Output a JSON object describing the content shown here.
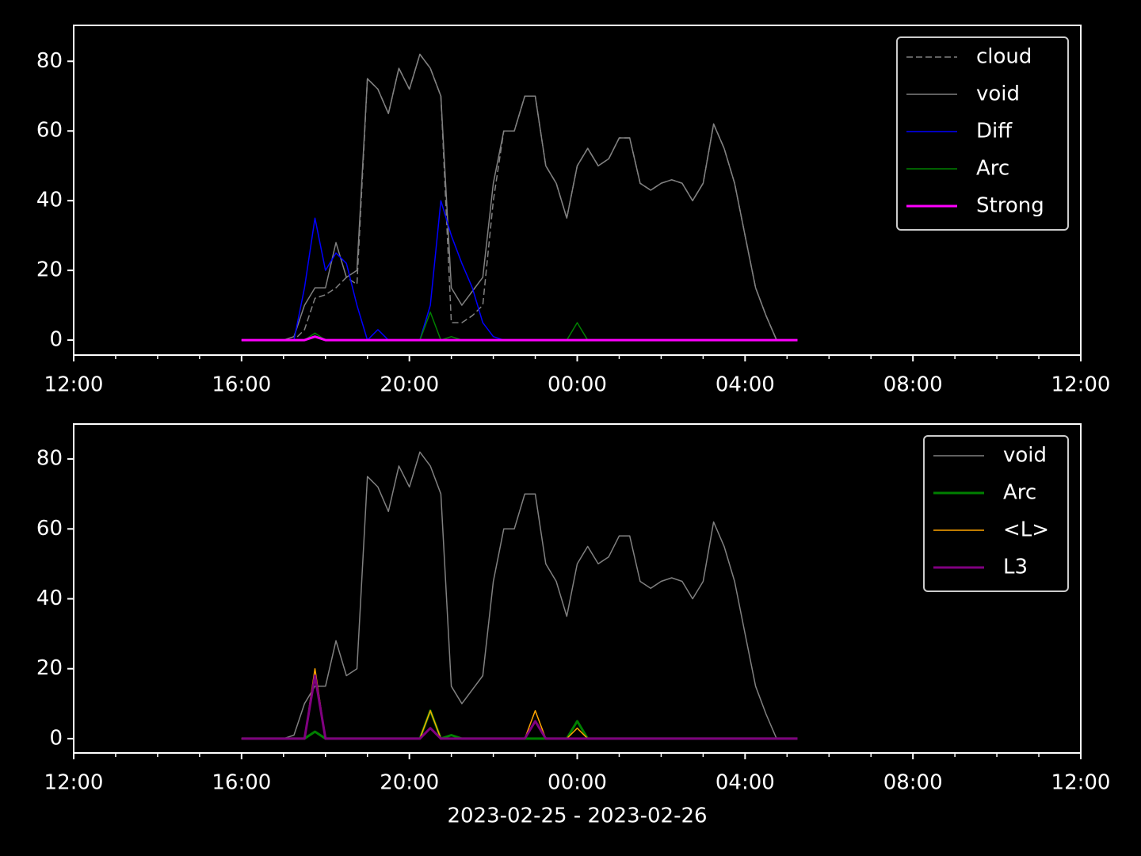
{
  "chart_data": [
    {
      "type": "line",
      "xlim": [
        0,
        24
      ],
      "ylim": [
        -4.3,
        90.3
      ],
      "xticks": [
        {
          "value": 0,
          "label": "12:00"
        },
        {
          "value": 4,
          "label": "16:00"
        },
        {
          "value": 8,
          "label": "20:00"
        },
        {
          "value": 12,
          "label": "00:00"
        },
        {
          "value": 16,
          "label": "04:00"
        },
        {
          "value": 20,
          "label": "08:00"
        },
        {
          "value": 24,
          "label": "12:00"
        }
      ],
      "xminorticks": [
        1,
        2,
        3,
        5,
        6,
        7,
        9,
        10,
        11,
        13,
        14,
        15,
        17,
        18,
        19,
        21,
        22,
        23
      ],
      "yticks": [
        0,
        20,
        40,
        60,
        80
      ],
      "legend": "upper right",
      "x": [
        4,
        4.25,
        4.5,
        4.75,
        5,
        5.25,
        5.5,
        5.75,
        6,
        6.25,
        6.5,
        6.75,
        7,
        7.25,
        7.5,
        7.75,
        8,
        8.25,
        8.5,
        8.75,
        9,
        9.25,
        9.5,
        9.75,
        10,
        10.25,
        10.5,
        10.75,
        11,
        11.25,
        11.5,
        11.75,
        12,
        12.25,
        12.5,
        12.75,
        13,
        13.25,
        13.5,
        13.75,
        14,
        14.25,
        14.5,
        14.75,
        15,
        15.25,
        15.5,
        15.75,
        16,
        16.25,
        16.5,
        16.75,
        17,
        17.25
      ],
      "series": [
        {
          "name": "cloud",
          "color": "#808080",
          "linewidth": 1.5,
          "linestyle": "dashed",
          "values": [
            0,
            0,
            0,
            0,
            0,
            0,
            3,
            12,
            13,
            15,
            18,
            16,
            75,
            72,
            65,
            78,
            72,
            82,
            78,
            70,
            5,
            5,
            7,
            10,
            40,
            60,
            60,
            70,
            70,
            50,
            45,
            35,
            50,
            55,
            50,
            52,
            58,
            58,
            45,
            43,
            45,
            46,
            45,
            40,
            45,
            62,
            55,
            45,
            30,
            15,
            7,
            0,
            0,
            0
          ]
        },
        {
          "name": "void",
          "color": "#808080",
          "linewidth": 1.5,
          "linestyle": "solid",
          "values": [
            0,
            0,
            0,
            0,
            0,
            1,
            10,
            15,
            15,
            28,
            18,
            20,
            75,
            72,
            65,
            78,
            72,
            82,
            78,
            70,
            15,
            10,
            14,
            18,
            45,
            60,
            60,
            70,
            70,
            50,
            45,
            35,
            50,
            55,
            50,
            52,
            58,
            58,
            45,
            43,
            45,
            46,
            45,
            40,
            45,
            62,
            55,
            45,
            30,
            15,
            7,
            0,
            0,
            0
          ]
        },
        {
          "name": "Diff",
          "color": "#0000ff",
          "linewidth": 1.5,
          "linestyle": "solid",
          "values": [
            0,
            0,
            0,
            0,
            0,
            0,
            15,
            35,
            20,
            25,
            22,
            10,
            0,
            3,
            0,
            0,
            0,
            0,
            10,
            40,
            30,
            22,
            15,
            5,
            1,
            0,
            0,
            0,
            0,
            0,
            0,
            0,
            0,
            0,
            0,
            0,
            0,
            0,
            0,
            0,
            0,
            0,
            0,
            0,
            0,
            0,
            0,
            0,
            0,
            0,
            0,
            0,
            0,
            0
          ]
        },
        {
          "name": "Arc",
          "color": "#008000",
          "linewidth": 1.5,
          "linestyle": "solid",
          "values": [
            0,
            0,
            0,
            0,
            0,
            0,
            0,
            2,
            0,
            0,
            0,
            0,
            0,
            0,
            0,
            0,
            0,
            0,
            8,
            0,
            1,
            0,
            0,
            0,
            0,
            0,
            0,
            0,
            0,
            0,
            0,
            0,
            5,
            0,
            0,
            0,
            0,
            0,
            0,
            0,
            0,
            0,
            0,
            0,
            0,
            0,
            0,
            0,
            0,
            0,
            0,
            0,
            0,
            0
          ]
        },
        {
          "name": "Strong",
          "color": "#ff00ff",
          "linewidth": 3,
          "linestyle": "solid",
          "values": [
            0,
            0,
            0,
            0,
            0,
            0,
            0,
            1,
            0,
            0,
            0,
            0,
            0,
            0,
            0,
            0,
            0,
            0,
            0,
            0,
            0,
            0,
            0,
            0,
            0,
            0,
            0,
            0,
            0,
            0,
            0,
            0,
            0,
            0,
            0,
            0,
            0,
            0,
            0,
            0,
            0,
            0,
            0,
            0,
            0,
            0,
            0,
            0,
            0,
            0,
            0,
            0,
            0,
            0
          ]
        }
      ]
    },
    {
      "type": "line",
      "xlim": [
        0,
        24
      ],
      "ylim": [
        -4.1,
        90.0
      ],
      "xlabel": "2023-02-25 - 2023-02-26",
      "xticks": [
        {
          "value": 0,
          "label": "12:00"
        },
        {
          "value": 4,
          "label": "16:00"
        },
        {
          "value": 8,
          "label": "20:00"
        },
        {
          "value": 12,
          "label": "00:00"
        },
        {
          "value": 16,
          "label": "04:00"
        },
        {
          "value": 20,
          "label": "08:00"
        },
        {
          "value": 24,
          "label": "12:00"
        }
      ],
      "xminorticks": [
        1,
        2,
        3,
        5,
        6,
        7,
        9,
        10,
        11,
        13,
        14,
        15,
        17,
        18,
        19,
        21,
        22,
        23
      ],
      "yticks": [
        0,
        20,
        40,
        60,
        80
      ],
      "legend": "upper right",
      "x": [
        4,
        4.25,
        4.5,
        4.75,
        5,
        5.25,
        5.5,
        5.75,
        6,
        6.25,
        6.5,
        6.75,
        7,
        7.25,
        7.5,
        7.75,
        8,
        8.25,
        8.5,
        8.75,
        9,
        9.25,
        9.5,
        9.75,
        10,
        10.25,
        10.5,
        10.75,
        11,
        11.25,
        11.5,
        11.75,
        12,
        12.25,
        12.5,
        12.75,
        13,
        13.25,
        13.5,
        13.75,
        14,
        14.25,
        14.5,
        14.75,
        15,
        15.25,
        15.5,
        15.75,
        16,
        16.25,
        16.5,
        16.75,
        17,
        17.25
      ],
      "series": [
        {
          "name": "void",
          "color": "#808080",
          "linewidth": 1.5,
          "linestyle": "solid",
          "values": [
            0,
            0,
            0,
            0,
            0,
            1,
            10,
            15,
            15,
            28,
            18,
            20,
            75,
            72,
            65,
            78,
            72,
            82,
            78,
            70,
            15,
            10,
            14,
            18,
            45,
            60,
            60,
            70,
            70,
            50,
            45,
            35,
            50,
            55,
            50,
            52,
            58,
            58,
            45,
            43,
            45,
            46,
            45,
            40,
            45,
            62,
            55,
            45,
            30,
            15,
            7,
            0,
            0,
            0
          ]
        },
        {
          "name": "Arc",
          "color": "#008000",
          "linewidth": 3,
          "linestyle": "solid",
          "values": [
            0,
            0,
            0,
            0,
            0,
            0,
            0,
            2,
            0,
            0,
            0,
            0,
            0,
            0,
            0,
            0,
            0,
            0,
            8,
            0,
            1,
            0,
            0,
            0,
            0,
            0,
            0,
            0,
            0,
            0,
            0,
            0,
            5,
            0,
            0,
            0,
            0,
            0,
            0,
            0,
            0,
            0,
            0,
            0,
            0,
            0,
            0,
            0,
            0,
            0,
            0,
            0,
            0,
            0
          ]
        },
        {
          "name": "<L>",
          "color": "#ffa500",
          "linewidth": 1.5,
          "linestyle": "solid",
          "values": [
            0,
            0,
            0,
            0,
            0,
            0,
            0,
            20,
            0,
            0,
            0,
            0,
            0,
            0,
            0,
            0,
            0,
            0,
            8,
            0,
            0,
            0,
            0,
            0,
            0,
            0,
            0,
            0,
            8,
            0,
            0,
            0,
            3,
            0,
            0,
            0,
            0,
            0,
            0,
            0,
            0,
            0,
            0,
            0,
            0,
            0,
            0,
            0,
            0,
            0,
            0,
            0,
            0,
            0
          ]
        },
        {
          "name": "L3",
          "color": "#800080",
          "linewidth": 3,
          "linestyle": "solid",
          "values": [
            0,
            0,
            0,
            0,
            0,
            0,
            0,
            18,
            0,
            0,
            0,
            0,
            0,
            0,
            0,
            0,
            0,
            0,
            3,
            0,
            0,
            0,
            0,
            0,
            0,
            0,
            0,
            0,
            5,
            0,
            0,
            0,
            0,
            0,
            0,
            0,
            0,
            0,
            0,
            0,
            0,
            0,
            0,
            0,
            0,
            0,
            0,
            0,
            0,
            0,
            0,
            0,
            0,
            0
          ]
        }
      ]
    }
  ]
}
